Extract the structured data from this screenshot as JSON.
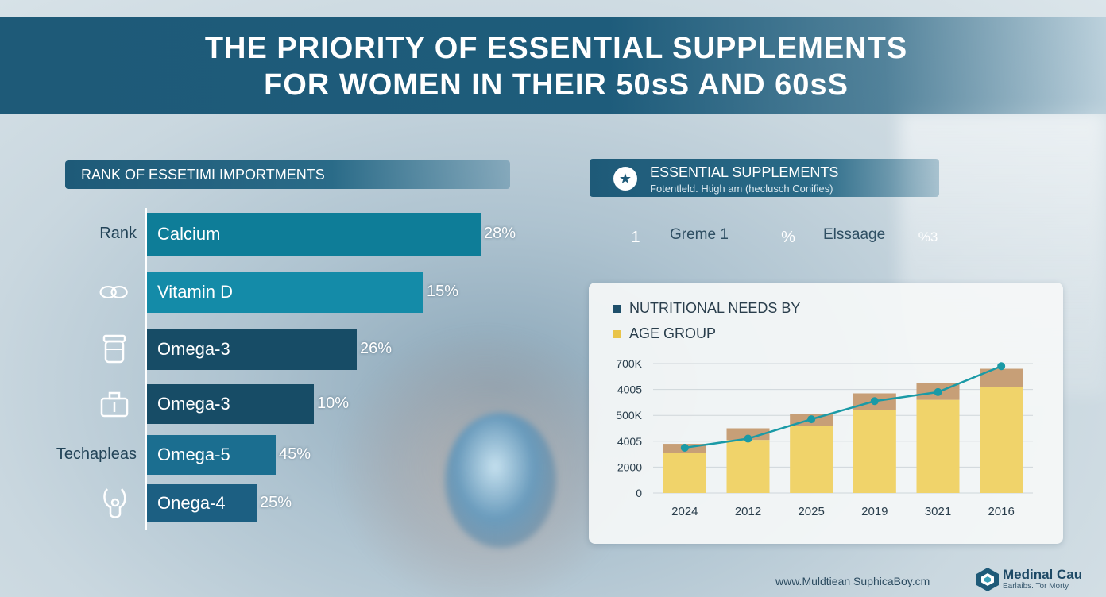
{
  "title_line1": "THE PRIORITY OF ESSENTIAL SUPPLEMENTS",
  "title_line2": "FOR WOMEN IN THEIR 50sS AND 60sS",
  "left_panel": {
    "header": "RANK OF ESSETIMI IMPORTMENTS",
    "rows": [
      {
        "label": "Rank",
        "icon": "none",
        "name": "Calcium",
        "value_text": "28%",
        "length": 0.7,
        "color": "#0e7d98"
      },
      {
        "label": "",
        "icon": "capsule-outline-icon",
        "name": "Vitamin D",
        "value_text": "15%",
        "length": 0.58,
        "color": "#148ba8"
      },
      {
        "label": "",
        "icon": "pill-bottle-icon",
        "name": "Omega-3",
        "value_text": "26%",
        "length": 0.44,
        "color": "#174c66"
      },
      {
        "label": "",
        "icon": "first-aid-box-icon",
        "name": "Omega-3",
        "value_text": "10%",
        "length": 0.35,
        "color": "#174c66"
      },
      {
        "label": "Techapleas",
        "icon": "none",
        "name": "Omega-5",
        "value_text": "45%",
        "length": 0.27,
        "color": "#1b6e90"
      },
      {
        "label": "",
        "icon": "stethoscope-icon",
        "name": "Onega-4",
        "value_text": "25%",
        "length": 0.23,
        "color": "#1c5f82"
      }
    ]
  },
  "right_panel": {
    "header_title": "ESSENTIAL SUPPLEMENTS",
    "header_subtitle": "Fotentleld. Htigh am (heclusch Conifies)",
    "header_icon": "star-icon",
    "badges": [
      {
        "symbol": "1",
        "color": "#e9ad2c",
        "label": "Greme 1"
      },
      {
        "symbol": "%",
        "color": "#4bb851",
        "label": "Elssaage"
      },
      {
        "symbol": "%3",
        "color": "#2a2a2a",
        "label": ""
      }
    ]
  },
  "chart_data": {
    "type": "bar",
    "legend": [
      {
        "text": "NUTRITIONAL NEEDS BY",
        "color": "#1e4f6a"
      },
      {
        "text": "AGE GROUP",
        "color": "#e9c449"
      }
    ],
    "y_ticks": [
      "0",
      "2000",
      "4005",
      "500K",
      "4005",
      "700K"
    ],
    "categories": [
      "2024",
      "2012",
      "2025",
      "2019",
      "3021",
      "2016"
    ],
    "bar_heights_in_tick_units": [
      1.55,
      2.05,
      2.6,
      3.2,
      3.6,
      4.1
    ],
    "bar_caps_in_tick_units": [
      0.35,
      0.45,
      0.45,
      0.65,
      0.65,
      0.7
    ],
    "line_in_tick_units": [
      1.75,
      2.1,
      2.85,
      3.55,
      3.9,
      4.9
    ],
    "bar_color": "#f0d36a",
    "cap_color": "#c79f77",
    "line_color": "#1a9aa6",
    "ylim_tick_units": [
      0,
      5
    ],
    "grid": true
  },
  "footer": {
    "url": "www.Muldtiean SuphicaBoy.cm",
    "brand": "Medinal Cau",
    "brand_sub": "Earlaibs. Tor Morty"
  }
}
